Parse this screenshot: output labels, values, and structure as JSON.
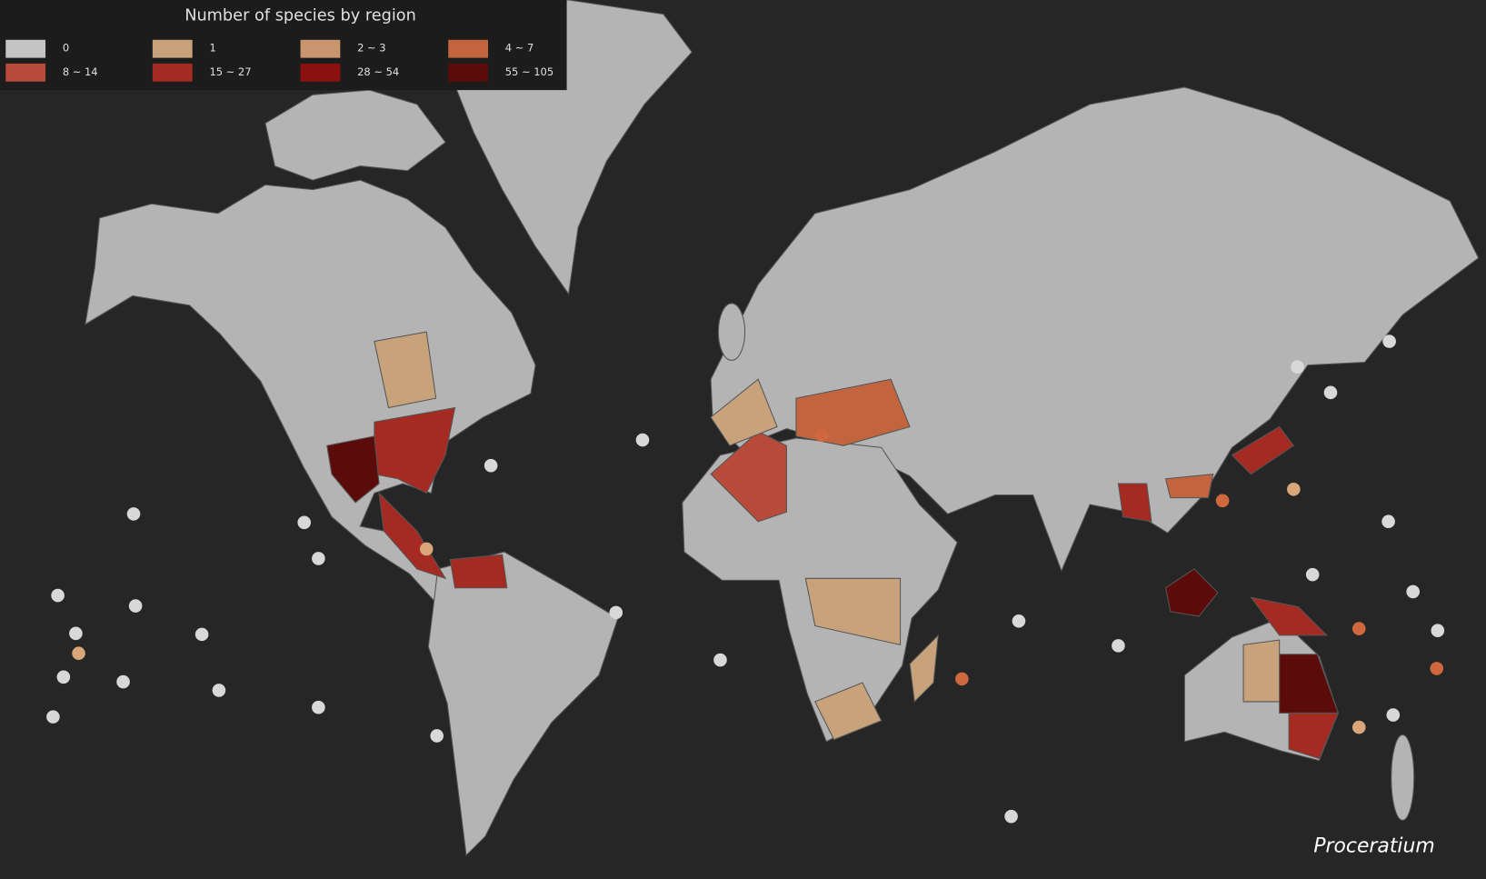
{
  "legend": {
    "title": "Number of species by region",
    "items": [
      {
        "label": "0",
        "color": "#c4c4c4"
      },
      {
        "label": "1",
        "color": "#c8a27a"
      },
      {
        "label": "2 ~ 3",
        "color": "#c9956e"
      },
      {
        "label": "4 ~ 7",
        "color": "#c2653f"
      },
      {
        "label": "8 ~ 14",
        "color": "#b84a3a"
      },
      {
        "label": "15 ~ 27",
        "color": "#a52a22"
      },
      {
        "label": "28 ~ 54",
        "color": "#8c1010"
      },
      {
        "label": "55 ~ 105",
        "color": "#5c0b0b"
      }
    ]
  },
  "genus": "Proceratium"
}
